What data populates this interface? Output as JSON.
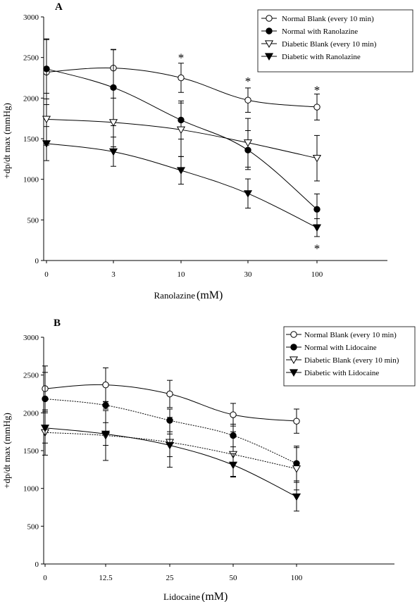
{
  "chart_data": [
    {
      "type": "line",
      "panel_label": "A",
      "xlabel": "Ranolazine",
      "xlabel_unit": "(mM)",
      "ylabel": "+dp/dt max (mmHg)",
      "ylim": [
        0,
        3000
      ],
      "yticks": [
        "0",
        "500",
        "1000",
        "1500",
        "2000",
        "2500",
        "3000"
      ],
      "categories": [
        "0",
        "3",
        "10",
        "30",
        "100"
      ],
      "grid": false,
      "legend_position": "top-right",
      "series": [
        {
          "name": "Normal Blank (every 10 min)",
          "marker": "open-circle",
          "dashed": false,
          "values": [
            2320,
            2370,
            2250,
            1975,
            1890
          ],
          "err": [
            400,
            225,
            180,
            150,
            160
          ]
        },
        {
          "name": "Normal with Ranolazine",
          "marker": "filled-circle",
          "dashed": false,
          "values": [
            2360,
            2130,
            1730,
            1360,
            630
          ],
          "err": [
            370,
            470,
            235,
            240,
            190
          ]
        },
        {
          "name": "Diabetic Blank (every 10 min)",
          "marker": "open-triangle",
          "dashed": false,
          "values": [
            1740,
            1700,
            1610,
            1450,
            1260
          ],
          "err": [
            320,
            300,
            330,
            300,
            280
          ]
        },
        {
          "name": "Diabetic with Ranolazine",
          "marker": "filled-triangle",
          "dashed": false,
          "values": [
            1440,
            1340,
            1110,
            825,
            405
          ],
          "err": [
            210,
            180,
            170,
            180,
            110
          ]
        }
      ],
      "significance": [
        {
          "x_index": 2,
          "y": 2520,
          "text": "*"
        },
        {
          "x_index": 3,
          "y": 2230,
          "text": "*"
        },
        {
          "x_index": 4,
          "y": 2120,
          "text": "*"
        },
        {
          "x_index": 4,
          "y": 170,
          "text": "*"
        }
      ]
    },
    {
      "type": "line",
      "panel_label": "B",
      "xlabel": "Lidocaine",
      "xlabel_unit": "(mM)",
      "ylabel": "+dp/dt max (mmHg)",
      "ylim": [
        0,
        3000
      ],
      "yticks": [
        "0",
        "500",
        "1000",
        "1500",
        "2000",
        "2500",
        "3000"
      ],
      "categories": [
        "0",
        "12.5",
        "25",
        "50",
        "100"
      ],
      "grid": false,
      "legend_position": "top-right",
      "series": [
        {
          "name": "Normal Blank (every 10 min)",
          "marker": "open-circle",
          "dashed": false,
          "values": [
            2320,
            2370,
            2250,
            1975,
            1890
          ],
          "err": [
            300,
            225,
            180,
            150,
            160
          ]
        },
        {
          "name": "Normal with Lidocaine",
          "marker": "filled-circle",
          "dashed": true,
          "values": [
            2185,
            2100,
            1900,
            1700,
            1330
          ],
          "err": [
            350,
            50,
            150,
            150,
            230
          ]
        },
        {
          "name": "Diabetic Blank (every 10 min)",
          "marker": "open-triangle",
          "dashed": true,
          "values": [
            1740,
            1700,
            1610,
            1450,
            1260
          ],
          "err": [
            300,
            330,
            330,
            300,
            280
          ]
        },
        {
          "name": "Diabetic with Lidocaine",
          "marker": "filled-triangle",
          "dashed": false,
          "values": [
            1800,
            1720,
            1570,
            1310,
            890
          ],
          "err": [
            200,
            150,
            150,
            150,
            190
          ]
        }
      ]
    }
  ]
}
